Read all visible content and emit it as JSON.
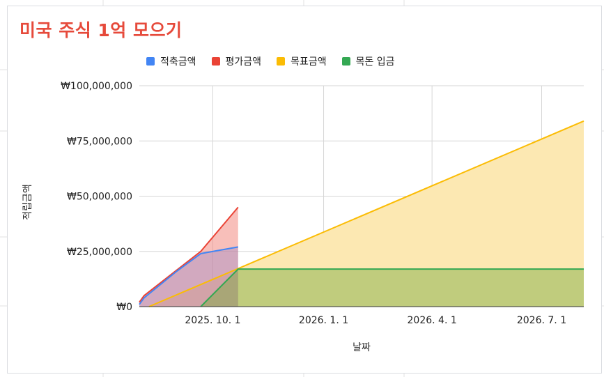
{
  "chart_data": {
    "type": "area",
    "title": "미국 주식 1억 모으기",
    "xlabel": "날짜",
    "ylabel": "적립금액",
    "x_axis_type": "date",
    "xlim": [
      "2025-08-01",
      "2026-08-05"
    ],
    "ylim": [
      0,
      100000000
    ],
    "x_ticks": [
      {
        "date": "2025-10-01",
        "label": "2025. 10. 1"
      },
      {
        "date": "2026-01-01",
        "label": "2026. 1. 1"
      },
      {
        "date": "2026-04-01",
        "label": "2026. 4. 1"
      },
      {
        "date": "2026-07-01",
        "label": "2026. 7. 1"
      }
    ],
    "y_ticks": [
      {
        "value": 0,
        "label": "₩0"
      },
      {
        "value": 25000000,
        "label": "₩25,000,000"
      },
      {
        "value": 50000000,
        "label": "₩50,000,000"
      },
      {
        "value": 75000000,
        "label": "₩75,000,000"
      },
      {
        "value": 100000000,
        "label": "₩100,000,000"
      }
    ],
    "grid": true,
    "legend_position": "top",
    "series": [
      {
        "name": "목표금액",
        "color": "#fbbc04",
        "fill": "#fce8b2",
        "points": [
          [
            "2025-08-09",
            0
          ],
          [
            "2026-08-05",
            84000000
          ]
        ]
      },
      {
        "name": "평가금액",
        "color": "#ea4335",
        "fill": "rgba(242,139,130,0.55)",
        "points": [
          [
            "2025-08-01",
            2000000
          ],
          [
            "2025-08-05",
            5000000
          ],
          [
            "2025-09-01",
            16500000
          ],
          [
            "2025-09-21",
            25000000
          ],
          [
            "2025-10-22",
            45000000
          ]
        ]
      },
      {
        "name": "적축금액",
        "color": "#4285f4",
        "fill": "rgba(140,130,200,0.35)",
        "points": [
          [
            "2025-08-01",
            1000000
          ],
          [
            "2025-08-05",
            4000000
          ],
          [
            "2025-09-01",
            16000000
          ],
          [
            "2025-09-21",
            24000000
          ],
          [
            "2025-10-22",
            27000000
          ]
        ]
      },
      {
        "name": "목돈 입금",
        "color": "#34a853",
        "fill": "rgba(120,170,60,0.45)",
        "points": [
          [
            "2025-09-21",
            0
          ],
          [
            "2025-10-22",
            17000000
          ],
          [
            "2026-08-05",
            17000000
          ]
        ]
      }
    ]
  },
  "legend_order": [
    "적축금액",
    "평가금액",
    "목표금액",
    "목돈 입금"
  ],
  "legend_colors": {
    "적축금액": "#4285f4",
    "평가금액": "#ea4335",
    "목표금액": "#fbbc04",
    "목돈 입금": "#34a853"
  }
}
